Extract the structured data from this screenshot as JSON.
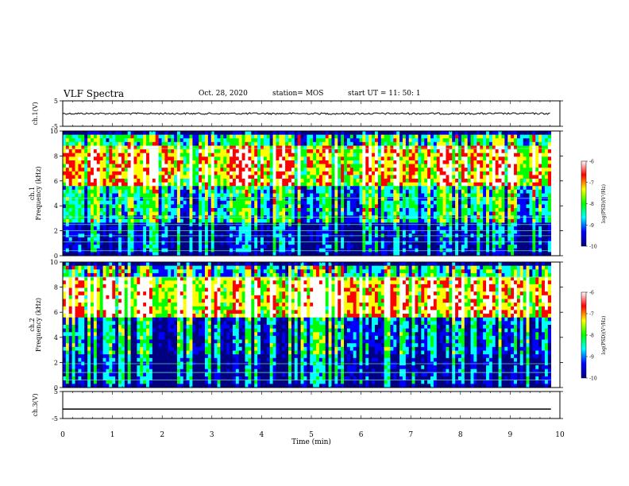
{
  "header": {
    "title": "VLF Spectra",
    "date": "Oct. 28, 2020",
    "station": "station= MOS",
    "start": "start  UT =   11: 50: 1"
  },
  "chart_data": [
    {
      "type": "line",
      "name": "ch1-waveform",
      "ylabel": "ch.1(V)",
      "ylim": [
        -5,
        5
      ],
      "yticks": [
        "5",
        "-5"
      ],
      "xlim": [
        0,
        10
      ],
      "level": 0
    },
    {
      "type": "heatmap",
      "name": "ch1-spectrogram",
      "ylabel": "ch.1\nFrequency (kHz)",
      "ylim": [
        0,
        10
      ],
      "yticks": [
        "0",
        "2",
        "4",
        "6",
        "8",
        "10"
      ],
      "xlim": [
        0,
        9.82
      ],
      "colorbar": {
        "label": "log(PSD)(V²/Hz)",
        "range": [
          -10,
          -6
        ],
        "ticks": [
          "-6",
          "-7",
          "-8",
          "-9",
          "-10"
        ],
        "colors": [
          "#000080",
          "#0000ff",
          "#00ffff",
          "#00ff00",
          "#ffff00",
          "#ff0000",
          "#ffffff"
        ]
      }
    },
    {
      "type": "heatmap",
      "name": "ch2-spectrogram",
      "ylabel": "ch.2\nFrequency (kHz)",
      "ylim": [
        0,
        10
      ],
      "yticks": [
        "0",
        "2",
        "4",
        "6",
        "8",
        "10"
      ],
      "xlim": [
        0,
        9.82
      ],
      "colorbar": {
        "label": "log(PSD)(V²/Hz)",
        "range": [
          -10,
          -6
        ],
        "ticks": [
          "-6",
          "-7",
          "-8",
          "-9",
          "-10"
        ],
        "colors": [
          "#000080",
          "#0000ff",
          "#00ffff",
          "#00ff00",
          "#ffff00",
          "#ff0000",
          "#ffffff"
        ]
      }
    },
    {
      "type": "line",
      "name": "ch3-waveform",
      "ylabel": "ch.3(V)",
      "ylim": [
        -5,
        5
      ],
      "yticks": [
        "5",
        "-5"
      ],
      "xlim": [
        0,
        10
      ],
      "level": -1.5
    }
  ],
  "xaxis": {
    "label": "Time (min)",
    "ticks": [
      "0",
      "1",
      "2",
      "3",
      "4",
      "5",
      "6",
      "7",
      "8",
      "9",
      "10"
    ]
  }
}
